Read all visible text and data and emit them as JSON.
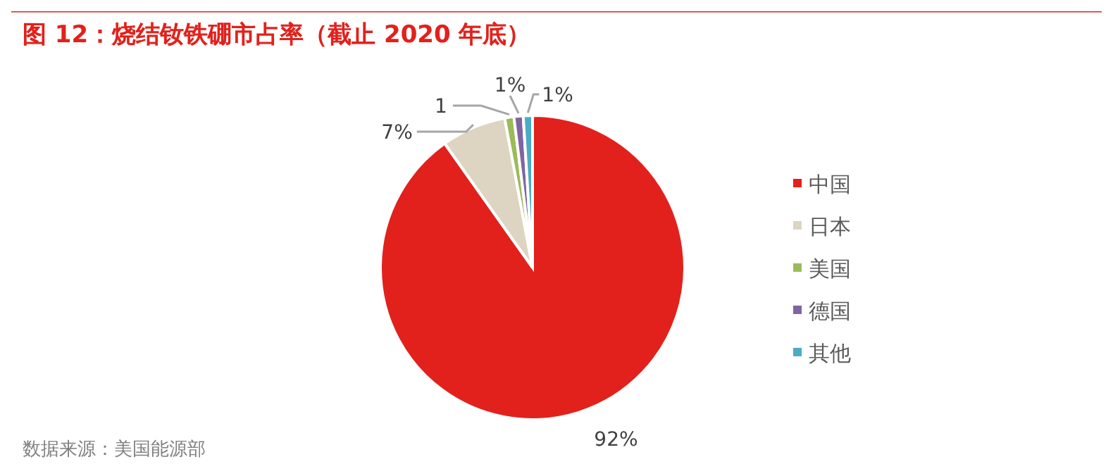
{
  "chart_data": {
    "type": "pie",
    "title": "图 12：烧结钕铁硼市占率（截止 2020 年底）",
    "categories": [
      "中国",
      "日本",
      "美国",
      "德国",
      "其他"
    ],
    "values": [
      92,
      7,
      1,
      1,
      1
    ],
    "colors": [
      "#e2211c",
      "#ddd5c1",
      "#9bbb59",
      "#8064a2",
      "#4bacc6"
    ],
    "value_labels": [
      "92%",
      "7%",
      "1",
      "1%",
      "1%"
    ],
    "legend": "right",
    "annotations": [
      "数据来源：美国能源部"
    ]
  }
}
